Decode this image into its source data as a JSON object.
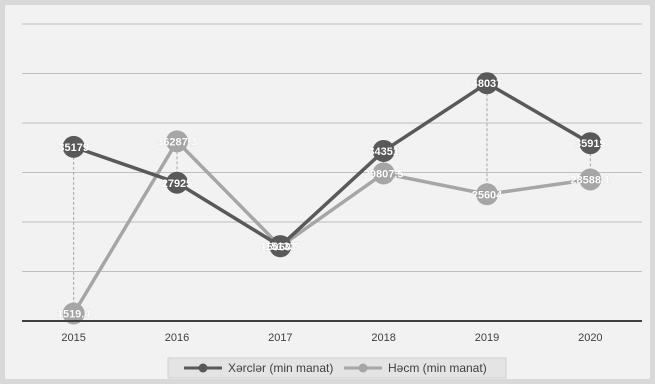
{
  "chart_data": {
    "type": "line",
    "title": "",
    "xlabel": "",
    "ylabel": "",
    "categories": [
      "2015",
      "2016",
      "2017",
      "2018",
      "2019",
      "2020"
    ],
    "ylim": [
      0,
      60000
    ],
    "grid": true,
    "legend_position": "bottom",
    "drop_lines": true,
    "series": [
      {
        "name": "Xərclər (min manat)",
        "values": [
          35179,
          27925,
          15133,
          34351,
          48037,
          35919
        ],
        "labels": [
          "35179",
          "27925",
          "15133",
          "34351",
          "48037",
          "35919"
        ],
        "color": "#595959"
      },
      {
        "name": "Həcm (min manat)",
        "values": [
          1519.4,
          36287.3,
          15060.5,
          29807.5,
          25604,
          28588.1
        ],
        "labels": [
          "1519.4",
          "36287.3",
          "15060.5",
          "29807.5",
          "25604",
          "28588.1"
        ],
        "color": "#a6a6a6"
      }
    ]
  },
  "colors": {
    "background": "#d9d9d9",
    "plot_area": "#f2f2f2",
    "gridline": "#bfbfbf",
    "axis": "#404040"
  }
}
